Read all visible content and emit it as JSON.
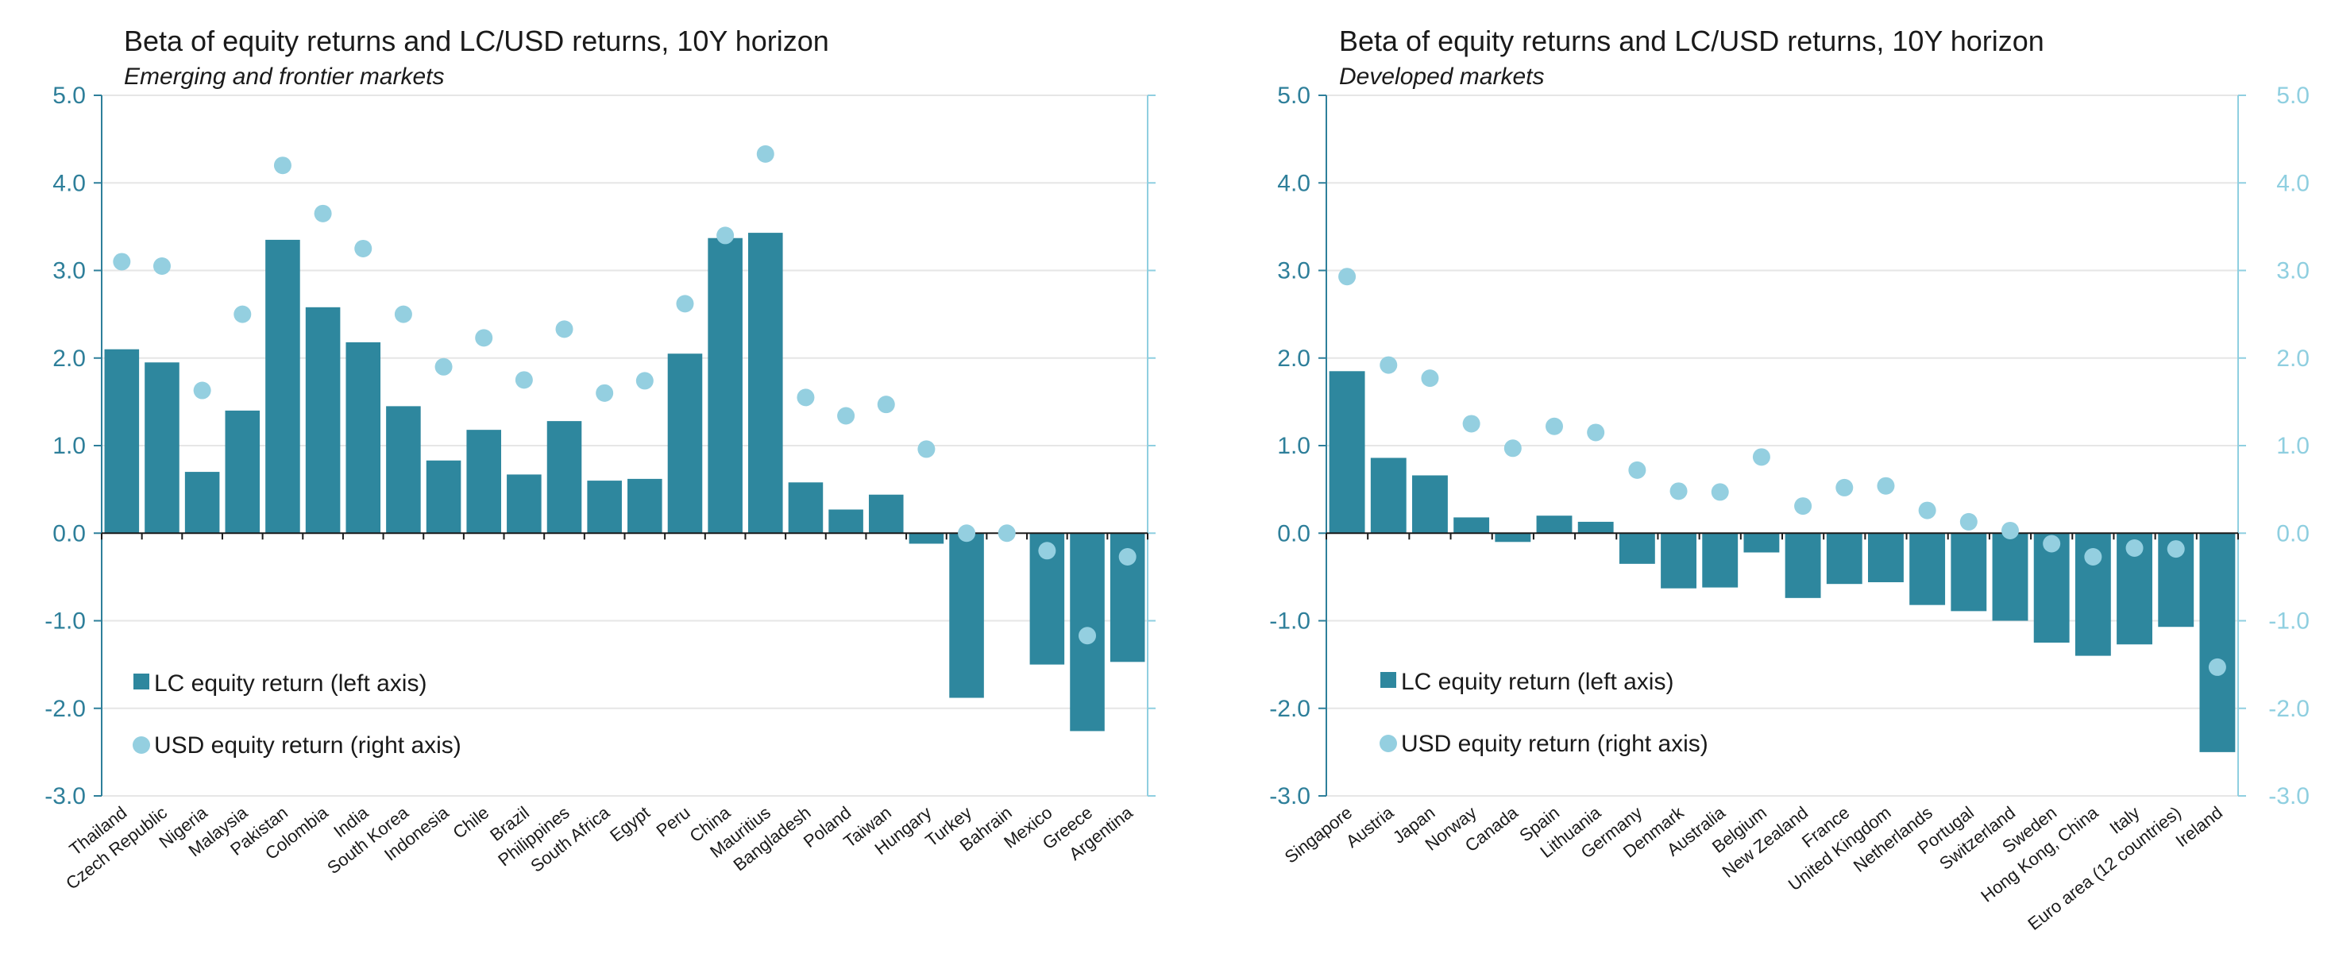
{
  "legend": {
    "lc_label": "LC equity return (left axis)",
    "usd_label": "USD equity return (right axis)"
  },
  "colors": {
    "bar": "#2e879e",
    "dot": "#94cfe0",
    "left_axis": "#2e7f9a",
    "right_axis": "#8fcfe0",
    "grid": "#e6e6e6"
  },
  "chart_data": [
    {
      "type": "bar",
      "title": "Beta of equity returns and LC/USD returns, 10Y horizon",
      "subtitle": "Emerging and frontier markets",
      "categories": [
        "Thailand",
        "Czech Republic",
        "Nigeria",
        "Malaysia",
        "Pakistan",
        "Colombia",
        "India",
        "South Korea",
        "Indonesia",
        "Chile",
        "Brazil",
        "Philippines",
        "South Africa",
        "Egypt",
        "Peru",
        "China",
        "Mauritius",
        "Bangladesh",
        "Poland",
        "Taiwan",
        "Hungary",
        "Turkey",
        "Bahrain",
        "Mexico",
        "Greece",
        "Argentina"
      ],
      "series": [
        {
          "name": "LC equity return (left axis)",
          "type": "bar",
          "axis": "left",
          "values": [
            2.1,
            1.95,
            0.7,
            1.4,
            3.35,
            2.58,
            2.18,
            1.45,
            0.83,
            1.18,
            0.67,
            1.28,
            0.6,
            0.62,
            2.05,
            3.37,
            3.43,
            0.58,
            0.27,
            0.44,
            -0.12,
            -1.88,
            null,
            -1.5,
            -2.26,
            -1.47
          ]
        },
        {
          "name": "USD equity return (right axis)",
          "type": "scatter",
          "axis": "right",
          "values": [
            3.1,
            3.05,
            1.63,
            2.5,
            4.2,
            3.65,
            3.25,
            2.5,
            1.9,
            2.23,
            1.75,
            2.33,
            1.6,
            1.74,
            2.62,
            3.4,
            4.33,
            1.55,
            1.34,
            1.47,
            0.96,
            0.0,
            0.0,
            -0.2,
            -1.17,
            -0.27
          ]
        }
      ],
      "yticks": [
        "5.0",
        "4.0",
        "3.0",
        "2.0",
        "1.0",
        "0.0",
        "-1.0",
        "-2.0",
        "-3.0"
      ],
      "ylim_left": [
        -3,
        5
      ],
      "ylim_right": [
        -3,
        5
      ],
      "grid": true,
      "legend_position": "bottom-left"
    },
    {
      "type": "bar",
      "title": "Beta of equity returns and LC/USD returns, 10Y horizon",
      "subtitle": "Developed markets",
      "categories": [
        "Singapore",
        "Austria",
        "Japan",
        "Norway",
        "Canada",
        "Spain",
        "Lithuania",
        "Germany",
        "Denmark",
        "Australia",
        "Belgium",
        "New Zealand",
        "France",
        "United Kingdom",
        "Netherlands",
        "Portugal",
        "Switzerland",
        "Sweden",
        "Hong Kong, China",
        "Italy",
        "Euro area (12 countries)",
        "Ireland"
      ],
      "series": [
        {
          "name": "LC equity return (left axis)",
          "type": "bar",
          "axis": "left",
          "values": [
            1.85,
            0.86,
            0.66,
            0.18,
            -0.1,
            0.2,
            0.13,
            -0.35,
            -0.63,
            -0.62,
            -0.22,
            -0.74,
            -0.58,
            -0.56,
            -0.82,
            -0.89,
            -1.0,
            -1.25,
            -1.4,
            -1.27,
            -1.07,
            -2.5
          ]
        },
        {
          "name": "USD equity return (right axis)",
          "type": "scatter",
          "axis": "right",
          "values": [
            2.93,
            1.92,
            1.77,
            1.25,
            0.97,
            1.22,
            1.15,
            0.72,
            0.48,
            0.47,
            0.87,
            0.31,
            0.52,
            0.54,
            0.26,
            0.13,
            0.03,
            -0.12,
            -0.27,
            -0.17,
            -0.18,
            -1.53
          ]
        }
      ],
      "yticks": [
        "5.0",
        "4.0",
        "3.0",
        "2.0",
        "1.0",
        "0.0",
        "-1.0",
        "-2.0",
        "-3.0"
      ],
      "ylim_left": [
        -3,
        5
      ],
      "ylim_right": [
        -3,
        5
      ],
      "grid": true,
      "legend_position": "bottom-left"
    }
  ]
}
